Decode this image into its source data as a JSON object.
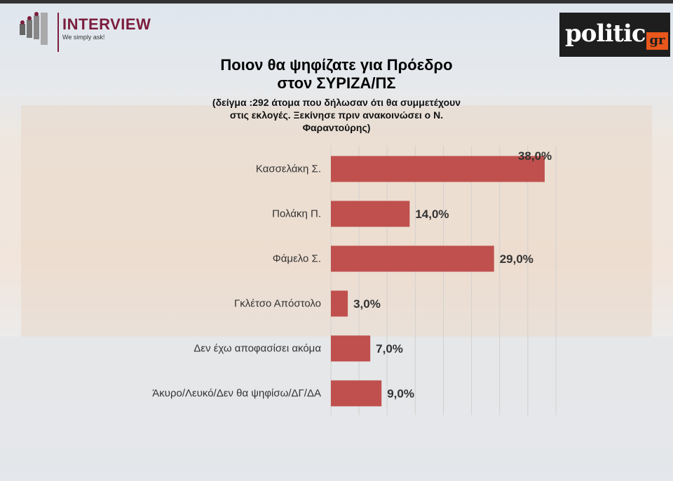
{
  "header": {
    "left_logo": {
      "name": "INTERVIEW",
      "tagline": "We simply ask!"
    },
    "right_logo": {
      "name": "politic",
      "suffix": "gr"
    }
  },
  "chart_data": {
    "type": "bar",
    "orientation": "horizontal",
    "title": "Ποιον θα ψηφίζατε για Πρόεδρο στον ΣΥΡΙΖΑ/ΠΣ",
    "title_lines": [
      "Ποιον θα ψηφίζατε για Πρόεδρο",
      "στον ΣΥΡΙΖΑ/ΠΣ"
    ],
    "subtitle_lines": [
      "(δείγμα :292 άτομα που δήλωσαν ότι θα συμμετέχουν",
      "στις εκλογές. Ξεκίνησε πριν ανακοινώσει ο Ν.",
      "Φαραντούρης)"
    ],
    "categories": [
      "Κασσελάκη Σ.",
      "Πολάκη Π.",
      "Φάμελο Σ.",
      "Γκλέτσο Απόστολο",
      "Δεν έχω αποφασίσει ακόμα",
      "Άκυρο/Λευκό/Δεν θα ψηφίσω/ΔΓ/ΔΑ"
    ],
    "values": [
      38.0,
      14.0,
      29.0,
      3.0,
      7.0,
      9.0
    ],
    "data_labels": [
      "38,0%",
      "14,0%",
      "29,0%",
      "3,0%",
      "7,0%",
      "9,0%"
    ],
    "xlim": [
      0,
      40
    ],
    "grid": true,
    "bar_color": "#c0504d",
    "legend": "none"
  }
}
